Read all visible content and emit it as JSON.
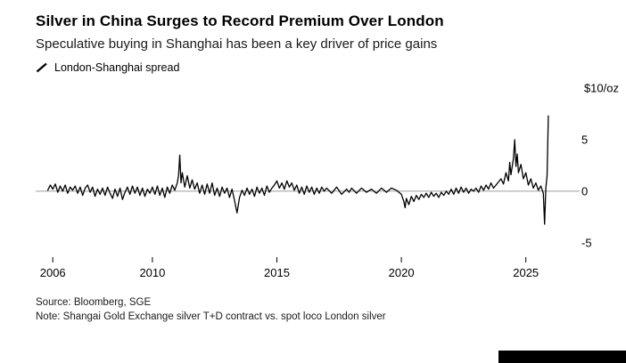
{
  "header": {
    "title": "Silver in China Surges to Record Premium Over London",
    "subtitle": "Speculative buying in Shanghai has been a key driver of price gains"
  },
  "legend": {
    "label": "London-Shanghai spread",
    "mark_color": "#000000"
  },
  "footer": {
    "source": "Source: Bloomberg, SGE",
    "note": "Note: Shangai Gold Exchange silver T+D contract vs. spot loco London silver"
  },
  "chart_data": {
    "type": "line",
    "title": "Silver in China Surges to Record Premium Over London",
    "subtitle": "Speculative buying in Shanghai has been a key driver of price gains",
    "unit_label": "$10/oz",
    "xlim": [
      2005.6,
      2026.8
    ],
    "ylim": [
      -5.7,
      10
    ],
    "x_ticks": [
      2006,
      2010,
      2015,
      2020,
      2025
    ],
    "y_ticks": [
      5,
      0,
      -5
    ],
    "grid": false,
    "legend_position": "top-left",
    "zero_line_color": "#9e9e9e",
    "line_color": "#000000",
    "series": [
      {
        "name": "London-Shanghai spread",
        "color": "#000000",
        "points": [
          [
            2005.8,
            0.1
          ],
          [
            2005.9,
            0.6
          ],
          [
            2006.0,
            0.2
          ],
          [
            2006.1,
            0.7
          ],
          [
            2006.2,
            -0.1
          ],
          [
            2006.3,
            0.5
          ],
          [
            2006.4,
            0.0
          ],
          [
            2006.5,
            0.6
          ],
          [
            2006.6,
            -0.2
          ],
          [
            2006.7,
            0.4
          ],
          [
            2006.8,
            0.1
          ],
          [
            2006.9,
            0.5
          ],
          [
            2007.0,
            -0.2
          ],
          [
            2007.1,
            0.4
          ],
          [
            2007.2,
            -0.4
          ],
          [
            2007.3,
            0.3
          ],
          [
            2007.4,
            0.6
          ],
          [
            2007.5,
            -0.1
          ],
          [
            2007.6,
            0.4
          ],
          [
            2007.7,
            -0.5
          ],
          [
            2007.8,
            0.2
          ],
          [
            2007.9,
            -0.3
          ],
          [
            2008.0,
            0.3
          ],
          [
            2008.1,
            -0.4
          ],
          [
            2008.2,
            0.4
          ],
          [
            2008.3,
            -0.2
          ],
          [
            2008.4,
            -0.7
          ],
          [
            2008.5,
            0.2
          ],
          [
            2008.6,
            -0.5
          ],
          [
            2008.7,
            0.3
          ],
          [
            2008.8,
            -0.8
          ],
          [
            2008.9,
            -0.1
          ],
          [
            2009.0,
            0.4
          ],
          [
            2009.1,
            -0.3
          ],
          [
            2009.2,
            0.5
          ],
          [
            2009.3,
            -0.2
          ],
          [
            2009.4,
            0.4
          ],
          [
            2009.5,
            -0.4
          ],
          [
            2009.6,
            0.3
          ],
          [
            2009.7,
            -0.5
          ],
          [
            2009.8,
            0.2
          ],
          [
            2009.9,
            -0.2
          ],
          [
            2010.0,
            0.4
          ],
          [
            2010.1,
            -0.3
          ],
          [
            2010.2,
            0.5
          ],
          [
            2010.3,
            -0.4
          ],
          [
            2010.4,
            0.3
          ],
          [
            2010.5,
            -0.6
          ],
          [
            2010.6,
            0.4
          ],
          [
            2010.7,
            -0.2
          ],
          [
            2010.8,
            0.6
          ],
          [
            2010.9,
            0.1
          ],
          [
            2011.0,
            0.8
          ],
          [
            2011.05,
            1.5
          ],
          [
            2011.1,
            3.5
          ],
          [
            2011.15,
            0.8
          ],
          [
            2011.2,
            1.8
          ],
          [
            2011.3,
            0.4
          ],
          [
            2011.4,
            1.5
          ],
          [
            2011.5,
            0.3
          ],
          [
            2011.6,
            1.1
          ],
          [
            2011.7,
            0.2
          ],
          [
            2011.8,
            0.8
          ],
          [
            2011.9,
            -0.2
          ],
          [
            2012.0,
            0.6
          ],
          [
            2012.1,
            -0.3
          ],
          [
            2012.2,
            0.7
          ],
          [
            2012.3,
            -0.2
          ],
          [
            2012.4,
            0.8
          ],
          [
            2012.5,
            -0.4
          ],
          [
            2012.6,
            0.3
          ],
          [
            2012.7,
            -0.5
          ],
          [
            2012.8,
            0.4
          ],
          [
            2012.9,
            -0.2
          ],
          [
            2013.0,
            0.3
          ],
          [
            2013.1,
            -0.6
          ],
          [
            2013.2,
            0.2
          ],
          [
            2013.3,
            -0.9
          ],
          [
            2013.4,
            -2.1
          ],
          [
            2013.5,
            -0.6
          ],
          [
            2013.6,
            0.1
          ],
          [
            2013.7,
            -0.4
          ],
          [
            2013.8,
            0.3
          ],
          [
            2013.9,
            -0.3
          ],
          [
            2014.0,
            0.2
          ],
          [
            2014.1,
            -0.5
          ],
          [
            2014.2,
            0.4
          ],
          [
            2014.3,
            -0.2
          ],
          [
            2014.4,
            0.3
          ],
          [
            2014.5,
            -0.4
          ],
          [
            2014.6,
            0.5
          ],
          [
            2014.7,
            -0.1
          ],
          [
            2014.8,
            0.3
          ],
          [
            2014.9,
            0.6
          ],
          [
            2015.0,
            1.0
          ],
          [
            2015.1,
            0.3
          ],
          [
            2015.2,
            0.8
          ],
          [
            2015.3,
            0.2
          ],
          [
            2015.4,
            1.0
          ],
          [
            2015.5,
            0.4
          ],
          [
            2015.6,
            0.8
          ],
          [
            2015.7,
            0.1
          ],
          [
            2015.8,
            0.6
          ],
          [
            2015.9,
            -0.2
          ],
          [
            2016.0,
            0.4
          ],
          [
            2016.1,
            -0.3
          ],
          [
            2016.2,
            0.5
          ],
          [
            2016.3,
            -0.1
          ],
          [
            2016.4,
            0.4
          ],
          [
            2016.5,
            -0.3
          ],
          [
            2016.6,
            0.3
          ],
          [
            2016.7,
            -0.2
          ],
          [
            2016.8,
            0.4
          ],
          [
            2016.9,
            0.0
          ],
          [
            2017.0,
            0.3
          ],
          [
            2017.2,
            -0.2
          ],
          [
            2017.4,
            0.4
          ],
          [
            2017.6,
            -0.3
          ],
          [
            2017.8,
            0.2
          ],
          [
            2017.9,
            -0.1
          ],
          [
            2018.0,
            0.3
          ],
          [
            2018.2,
            -0.2
          ],
          [
            2018.4,
            0.3
          ],
          [
            2018.6,
            -0.1
          ],
          [
            2018.8,
            0.2
          ],
          [
            2019.0,
            -0.2
          ],
          [
            2019.2,
            0.3
          ],
          [
            2019.4,
            -0.1
          ],
          [
            2019.6,
            0.3
          ],
          [
            2019.8,
            0.1
          ],
          [
            2020.0,
            -0.3
          ],
          [
            2020.1,
            -1.0
          ],
          [
            2020.15,
            -1.6
          ],
          [
            2020.2,
            -0.7
          ],
          [
            2020.3,
            -1.3
          ],
          [
            2020.4,
            -0.5
          ],
          [
            2020.5,
            -1.0
          ],
          [
            2020.6,
            -0.4
          ],
          [
            2020.7,
            -0.8
          ],
          [
            2020.8,
            -0.3
          ],
          [
            2020.9,
            -0.6
          ],
          [
            2021.0,
            -0.2
          ],
          [
            2021.1,
            -0.6
          ],
          [
            2021.2,
            -0.1
          ],
          [
            2021.3,
            -0.5
          ],
          [
            2021.4,
            -0.2
          ],
          [
            2021.5,
            -0.6
          ],
          [
            2021.6,
            -0.1
          ],
          [
            2021.7,
            -0.4
          ],
          [
            2021.8,
            0.0
          ],
          [
            2021.9,
            -0.3
          ],
          [
            2022.0,
            0.2
          ],
          [
            2022.1,
            -0.3
          ],
          [
            2022.2,
            0.3
          ],
          [
            2022.3,
            -0.2
          ],
          [
            2022.4,
            0.4
          ],
          [
            2022.5,
            -0.1
          ],
          [
            2022.6,
            0.3
          ],
          [
            2022.7,
            -0.2
          ],
          [
            2022.8,
            0.2
          ],
          [
            2022.9,
            0.0
          ],
          [
            2023.0,
            0.3
          ],
          [
            2023.1,
            -0.1
          ],
          [
            2023.2,
            0.5
          ],
          [
            2023.3,
            0.1
          ],
          [
            2023.4,
            0.6
          ],
          [
            2023.5,
            0.2
          ],
          [
            2023.6,
            0.8
          ],
          [
            2023.7,
            0.3
          ],
          [
            2023.8,
            0.6
          ],
          [
            2023.9,
            0.9
          ],
          [
            2024.0,
            1.2
          ],
          [
            2024.1,
            0.7
          ],
          [
            2024.2,
            1.8
          ],
          [
            2024.3,
            1.0
          ],
          [
            2024.35,
            2.8
          ],
          [
            2024.4,
            1.6
          ],
          [
            2024.5,
            3.2
          ],
          [
            2024.55,
            5.0
          ],
          [
            2024.6,
            2.4
          ],
          [
            2024.65,
            3.6
          ],
          [
            2024.7,
            1.8
          ],
          [
            2024.8,
            2.6
          ],
          [
            2024.9,
            1.2
          ],
          [
            2025.0,
            1.8
          ],
          [
            2025.1,
            0.6
          ],
          [
            2025.2,
            1.2
          ],
          [
            2025.3,
            0.3
          ],
          [
            2025.4,
            0.8
          ],
          [
            2025.5,
            0.1
          ],
          [
            2025.6,
            0.5
          ],
          [
            2025.7,
            -0.2
          ],
          [
            2025.75,
            -3.2
          ],
          [
            2025.8,
            0.3
          ],
          [
            2025.85,
            1.5
          ],
          [
            2025.9,
            7.3
          ]
        ]
      }
    ]
  }
}
